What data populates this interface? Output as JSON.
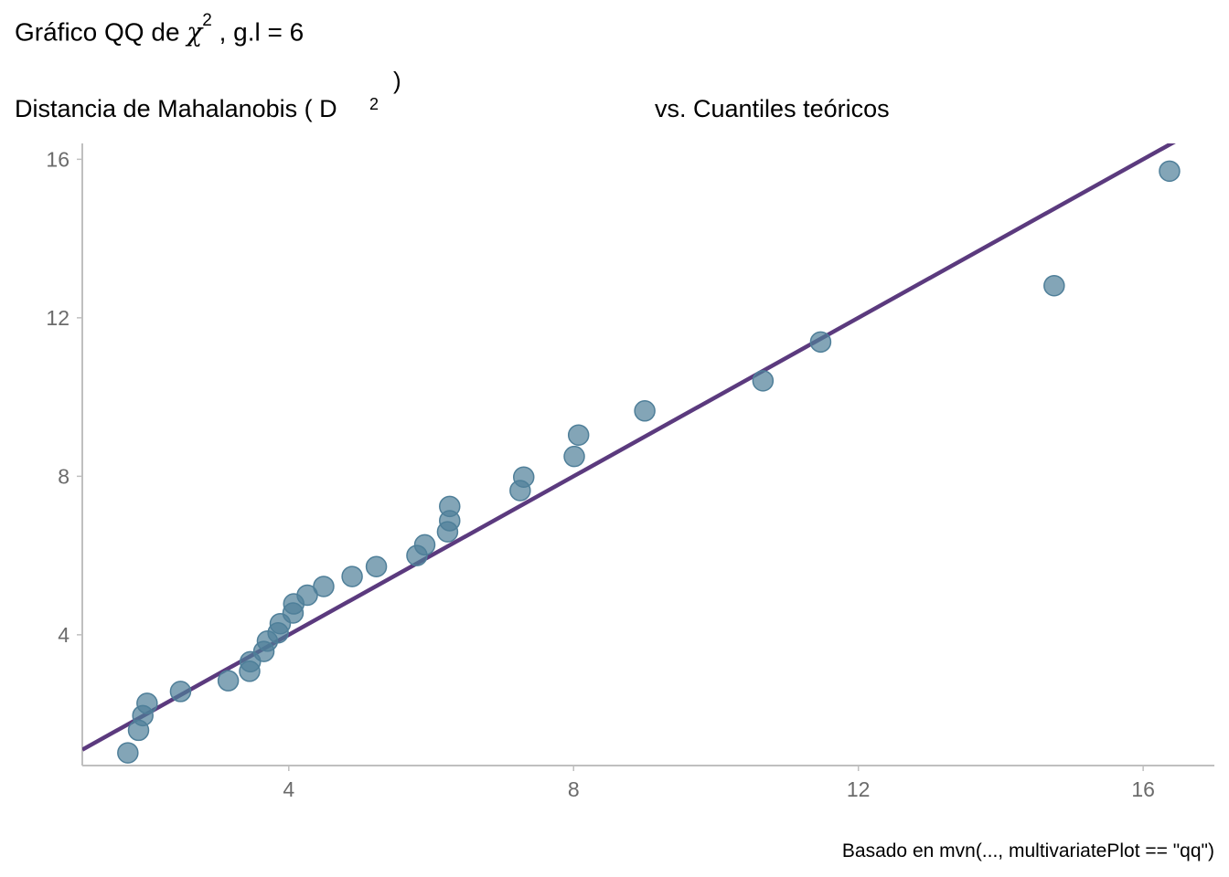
{
  "title": {
    "text": "Gráfico QQ de ",
    "symbol": "χ",
    "exponent": "2",
    "suffix": " , g.l =  6"
  },
  "subtitle": {
    "left": "Distancia de Mahalanobis (  D",
    "exponent": "2",
    "close": ")",
    "right": "vs. Cuantiles teóricos"
  },
  "caption": "Basado en mvn(..., multivariatePlot == \"qq\")",
  "colors": {
    "points": "#4f7f99",
    "line": "#5b3a7e",
    "axis": "#bfbfbf",
    "ticks": "#6b6b6b"
  },
  "chart_data": {
    "type": "scatter",
    "x_ticks": [
      4,
      8,
      12,
      16
    ],
    "y_ticks": [
      4,
      8,
      12,
      16
    ],
    "xlim": [
      1.1,
      17.0
    ],
    "ylim": [
      0.7,
      16.4
    ],
    "reference_line": {
      "slope": 1,
      "intercept": 0
    },
    "points": [
      {
        "x": 1.74,
        "y": 1.02
      },
      {
        "x": 1.89,
        "y": 1.59
      },
      {
        "x": 1.95,
        "y": 1.96
      },
      {
        "x": 2.01,
        "y": 2.27
      },
      {
        "x": 2.48,
        "y": 2.57
      },
      {
        "x": 3.15,
        "y": 2.84
      },
      {
        "x": 3.45,
        "y": 3.08
      },
      {
        "x": 3.46,
        "y": 3.32
      },
      {
        "x": 3.65,
        "y": 3.58
      },
      {
        "x": 3.7,
        "y": 3.84
      },
      {
        "x": 3.85,
        "y": 4.05
      },
      {
        "x": 3.88,
        "y": 4.28
      },
      {
        "x": 4.06,
        "y": 4.55
      },
      {
        "x": 4.07,
        "y": 4.78
      },
      {
        "x": 4.26,
        "y": 5.0
      },
      {
        "x": 4.49,
        "y": 5.22
      },
      {
        "x": 4.89,
        "y": 5.47
      },
      {
        "x": 5.23,
        "y": 5.72
      },
      {
        "x": 5.8,
        "y": 6.0
      },
      {
        "x": 5.91,
        "y": 6.27
      },
      {
        "x": 6.23,
        "y": 6.6
      },
      {
        "x": 6.26,
        "y": 6.88
      },
      {
        "x": 6.26,
        "y": 7.24
      },
      {
        "x": 7.25,
        "y": 7.64
      },
      {
        "x": 7.3,
        "y": 7.98
      },
      {
        "x": 8.01,
        "y": 8.5
      },
      {
        "x": 8.07,
        "y": 9.04
      },
      {
        "x": 9.0,
        "y": 9.65
      },
      {
        "x": 10.66,
        "y": 10.41
      },
      {
        "x": 11.47,
        "y": 11.39
      },
      {
        "x": 14.75,
        "y": 12.81
      },
      {
        "x": 16.37,
        "y": 15.7
      }
    ]
  }
}
